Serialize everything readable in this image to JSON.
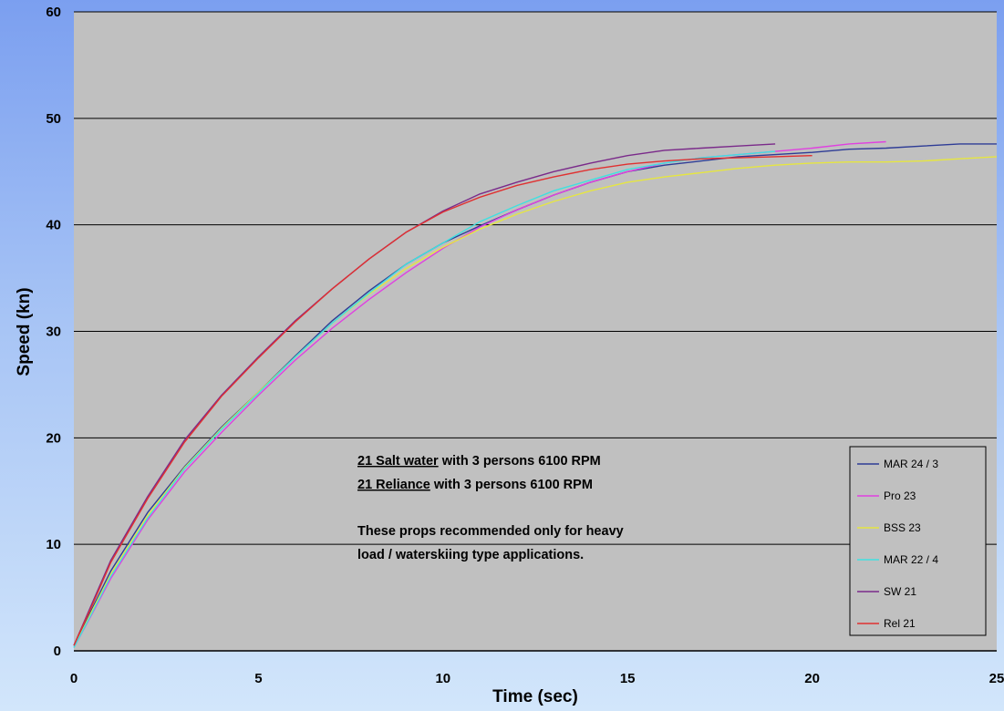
{
  "chart_data": {
    "type": "line",
    "title": "",
    "xlabel": "Time (sec)",
    "ylabel": "Speed (kn)",
    "xlim": [
      0,
      25
    ],
    "ylim": [
      0,
      60
    ],
    "x_ticks": [
      "0",
      "5",
      "10",
      "15",
      "20",
      "25"
    ],
    "y_ticks": [
      "0",
      "10",
      "20",
      "30",
      "40",
      "50",
      "60"
    ],
    "grid": "horizontal",
    "legend_position": "bottom-right",
    "series": [
      {
        "name": "MAR 24 / 3",
        "color": "#2e3c96",
        "points": [
          [
            0,
            0.5
          ],
          [
            0.5,
            4
          ],
          [
            1,
            7.5
          ],
          [
            2,
            13
          ],
          [
            3,
            17.3
          ],
          [
            4,
            21
          ],
          [
            5,
            24.3
          ],
          [
            6,
            27.7
          ],
          [
            7,
            31
          ],
          [
            8,
            33.8
          ],
          [
            9,
            36.3
          ],
          [
            10,
            38.3
          ],
          [
            11,
            39.9
          ],
          [
            12,
            41.4
          ],
          [
            13,
            42.8
          ],
          [
            14,
            44
          ],
          [
            15,
            45
          ],
          [
            16,
            45.6
          ],
          [
            17,
            46
          ],
          [
            18,
            46.4
          ],
          [
            19,
            46.6
          ],
          [
            20,
            46.8
          ],
          [
            21,
            47.1
          ],
          [
            22,
            47.2
          ],
          [
            23,
            47.4
          ],
          [
            24,
            47.6
          ],
          [
            25,
            47.6
          ]
        ]
      },
      {
        "name": "Pro 23",
        "color": "#e040e0",
        "points": [
          [
            0,
            0.3
          ],
          [
            0.5,
            3.5
          ],
          [
            1,
            6.8
          ],
          [
            2,
            12.3
          ],
          [
            3,
            16.8
          ],
          [
            4,
            20.5
          ],
          [
            5,
            24
          ],
          [
            6,
            27.3
          ],
          [
            7,
            30.3
          ],
          [
            8,
            33
          ],
          [
            9,
            35.5
          ],
          [
            10,
            37.8
          ],
          [
            11,
            39.8
          ],
          [
            12,
            41.4
          ],
          [
            13,
            42.8
          ],
          [
            14,
            44
          ],
          [
            15,
            45
          ],
          [
            16,
            45.8
          ],
          [
            17,
            46.3
          ],
          [
            18,
            46.6
          ],
          [
            19,
            46.9
          ],
          [
            20,
            47.2
          ],
          [
            21,
            47.6
          ],
          [
            22,
            47.8
          ]
        ]
      },
      {
        "name": "BSS 23",
        "color": "#e6e640",
        "points": [
          [
            0,
            0.3
          ],
          [
            0.5,
            3.8
          ],
          [
            1,
            7.2
          ],
          [
            2,
            12.7
          ],
          [
            3,
            17.2
          ],
          [
            4,
            20.9
          ],
          [
            5,
            24.3
          ],
          [
            6,
            27.6
          ],
          [
            7,
            30.8
          ],
          [
            8,
            33.5
          ],
          [
            9,
            35.9
          ],
          [
            10,
            37.9
          ],
          [
            11,
            39.6
          ],
          [
            12,
            41
          ],
          [
            13,
            42.2
          ],
          [
            14,
            43.2
          ],
          [
            15,
            44
          ],
          [
            16,
            44.5
          ],
          [
            17,
            44.9
          ],
          [
            18,
            45.3
          ],
          [
            19,
            45.6
          ],
          [
            20,
            45.8
          ],
          [
            21,
            45.9
          ],
          [
            22,
            45.9
          ],
          [
            23,
            46
          ],
          [
            24,
            46.2
          ],
          [
            25,
            46.4
          ]
        ]
      },
      {
        "name": "MAR 22 / 4",
        "color": "#40e0e0",
        "points": [
          [
            0,
            0.3
          ],
          [
            0.5,
            3.6
          ],
          [
            1,
            7
          ],
          [
            2,
            12.5
          ],
          [
            3,
            17.1
          ],
          [
            4,
            20.8
          ],
          [
            5,
            24.2
          ],
          [
            6,
            27.6
          ],
          [
            7,
            30.8
          ],
          [
            8,
            33.6
          ],
          [
            9,
            36.3
          ],
          [
            10,
            38.3
          ],
          [
            11,
            40.3
          ],
          [
            12,
            41.8
          ],
          [
            13,
            43.2
          ],
          [
            14,
            44.2
          ],
          [
            15,
            45.2
          ],
          [
            16,
            45.8
          ],
          [
            17,
            46.3
          ],
          [
            18,
            46.6
          ],
          [
            19,
            46.9
          ]
        ]
      },
      {
        "name": "SW 21",
        "color": "#7a2a8a",
        "points": [
          [
            0,
            0.5
          ],
          [
            0.5,
            4.5
          ],
          [
            1,
            8.5
          ],
          [
            2,
            14.5
          ],
          [
            3,
            19.8
          ],
          [
            4,
            24
          ],
          [
            5,
            27.6
          ],
          [
            6,
            31
          ],
          [
            7,
            34
          ],
          [
            8,
            36.8
          ],
          [
            9,
            39.3
          ],
          [
            10,
            41.3
          ],
          [
            11,
            42.9
          ],
          [
            12,
            44
          ],
          [
            13,
            45
          ],
          [
            14,
            45.8
          ],
          [
            15,
            46.5
          ],
          [
            16,
            47
          ],
          [
            17,
            47.2
          ],
          [
            18,
            47.4
          ],
          [
            19,
            47.6
          ]
        ]
      },
      {
        "name": "Rel 21",
        "color": "#e03030",
        "points": [
          [
            0,
            0.5
          ],
          [
            0.5,
            4.3
          ],
          [
            1,
            8.3
          ],
          [
            2,
            14.3
          ],
          [
            3,
            19.6
          ],
          [
            4,
            23.9
          ],
          [
            5,
            27.5
          ],
          [
            6,
            30.9
          ],
          [
            7,
            34
          ],
          [
            8,
            36.8
          ],
          [
            9,
            39.3
          ],
          [
            10,
            41.2
          ],
          [
            11,
            42.6
          ],
          [
            12,
            43.7
          ],
          [
            13,
            44.5
          ],
          [
            14,
            45.2
          ],
          [
            15,
            45.7
          ],
          [
            16,
            46
          ],
          [
            17,
            46.2
          ],
          [
            18,
            46.3
          ],
          [
            19,
            46.4
          ],
          [
            20,
            46.5
          ]
        ]
      }
    ]
  },
  "annotation": {
    "line1_bold": "21 Salt water",
    "line1_rest": " with 3 persons 6100 RPM",
    "line2_bold": "21 Reliance",
    "line2_rest": " with 3 persons 6100 RPM",
    "line3": "These props recommended only for heavy",
    "line4": "load / waterskiing type applications."
  }
}
